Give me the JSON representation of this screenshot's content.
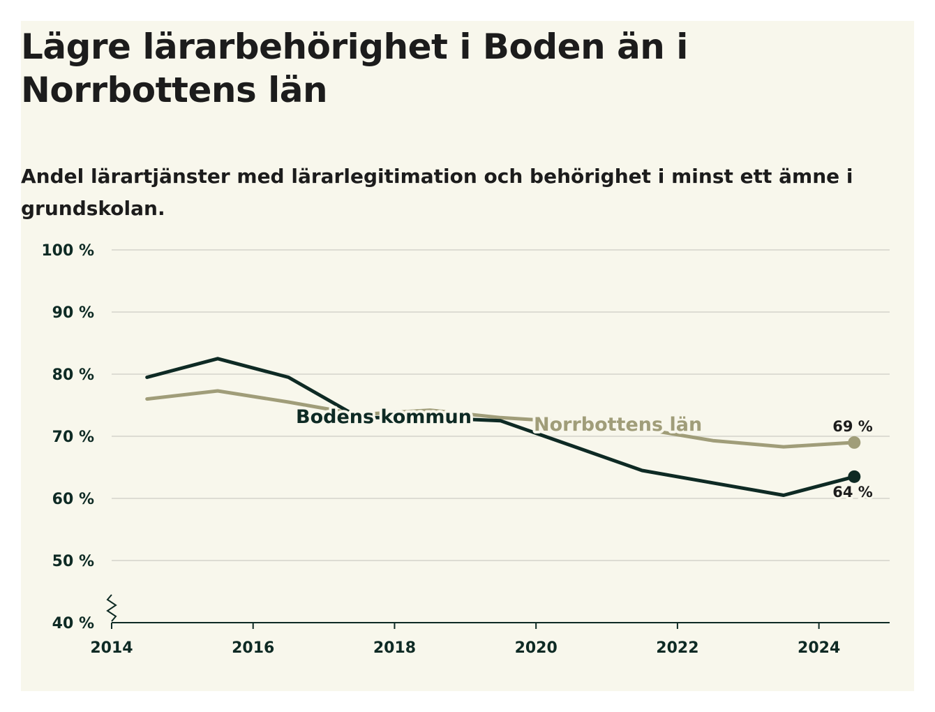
{
  "title": "Lägre lärarbehörighet i Boden än i Norrbottens län",
  "subtitle": "Andel lärartjänster med lärarlegitimation och behörighet i minst ett ämne i grundskolan.",
  "colors": {
    "background": "#f8f7ec",
    "bodens": "#0e2a24",
    "norrbotten": "#a09d79",
    "grid": "#dddcd3"
  },
  "chart_data": {
    "type": "line",
    "title": "Lägre lärarbehörighet i Boden än i Norrbottens län",
    "subtitle": "Andel lärartjänster med lärarlegitimation och behörighet i minst ett ämne i grundskolan.",
    "xlabel": "",
    "ylabel": "",
    "xlim": [
      2014,
      2025
    ],
    "ylim": [
      40,
      100
    ],
    "y_ticks": [
      40,
      50,
      60,
      70,
      80,
      90,
      100
    ],
    "y_tick_labels": [
      "40 %",
      "50 %",
      "60 %",
      "70 %",
      "80 %",
      "90 %",
      "100 %"
    ],
    "x_ticks": [
      2014,
      2016,
      2018,
      2020,
      2022,
      2024
    ],
    "x_tick_labels": [
      "2014",
      "2016",
      "2018",
      "2020",
      "2022",
      "2024"
    ],
    "axis_break": true,
    "grid": true,
    "series": [
      {
        "name": "Bodens kommun",
        "color": "#0e2a24",
        "x": [
          2014.5,
          2015.5,
          2016.5,
          2017.5,
          2018.5,
          2019.5,
          2020.5,
          2021.5,
          2022.5,
          2023.5,
          2024.5
        ],
        "y": [
          79.5,
          82.5,
          79.5,
          73,
          73,
          72.5,
          68.5,
          64.5,
          62.5,
          60.5,
          63.5
        ],
        "end_label": "64 %"
      },
      {
        "name": "Norrbottens län",
        "color": "#a09d79",
        "x": [
          2014.5,
          2015.5,
          2016.5,
          2017.5,
          2018.5,
          2019.5,
          2020.5,
          2021.5,
          2022.5,
          2023.5,
          2024.5
        ],
        "y": [
          76,
          77.3,
          75.5,
          73.5,
          74.2,
          73,
          72.3,
          71.2,
          69.3,
          68.3,
          69
        ],
        "end_label": "69 %"
      }
    ]
  }
}
